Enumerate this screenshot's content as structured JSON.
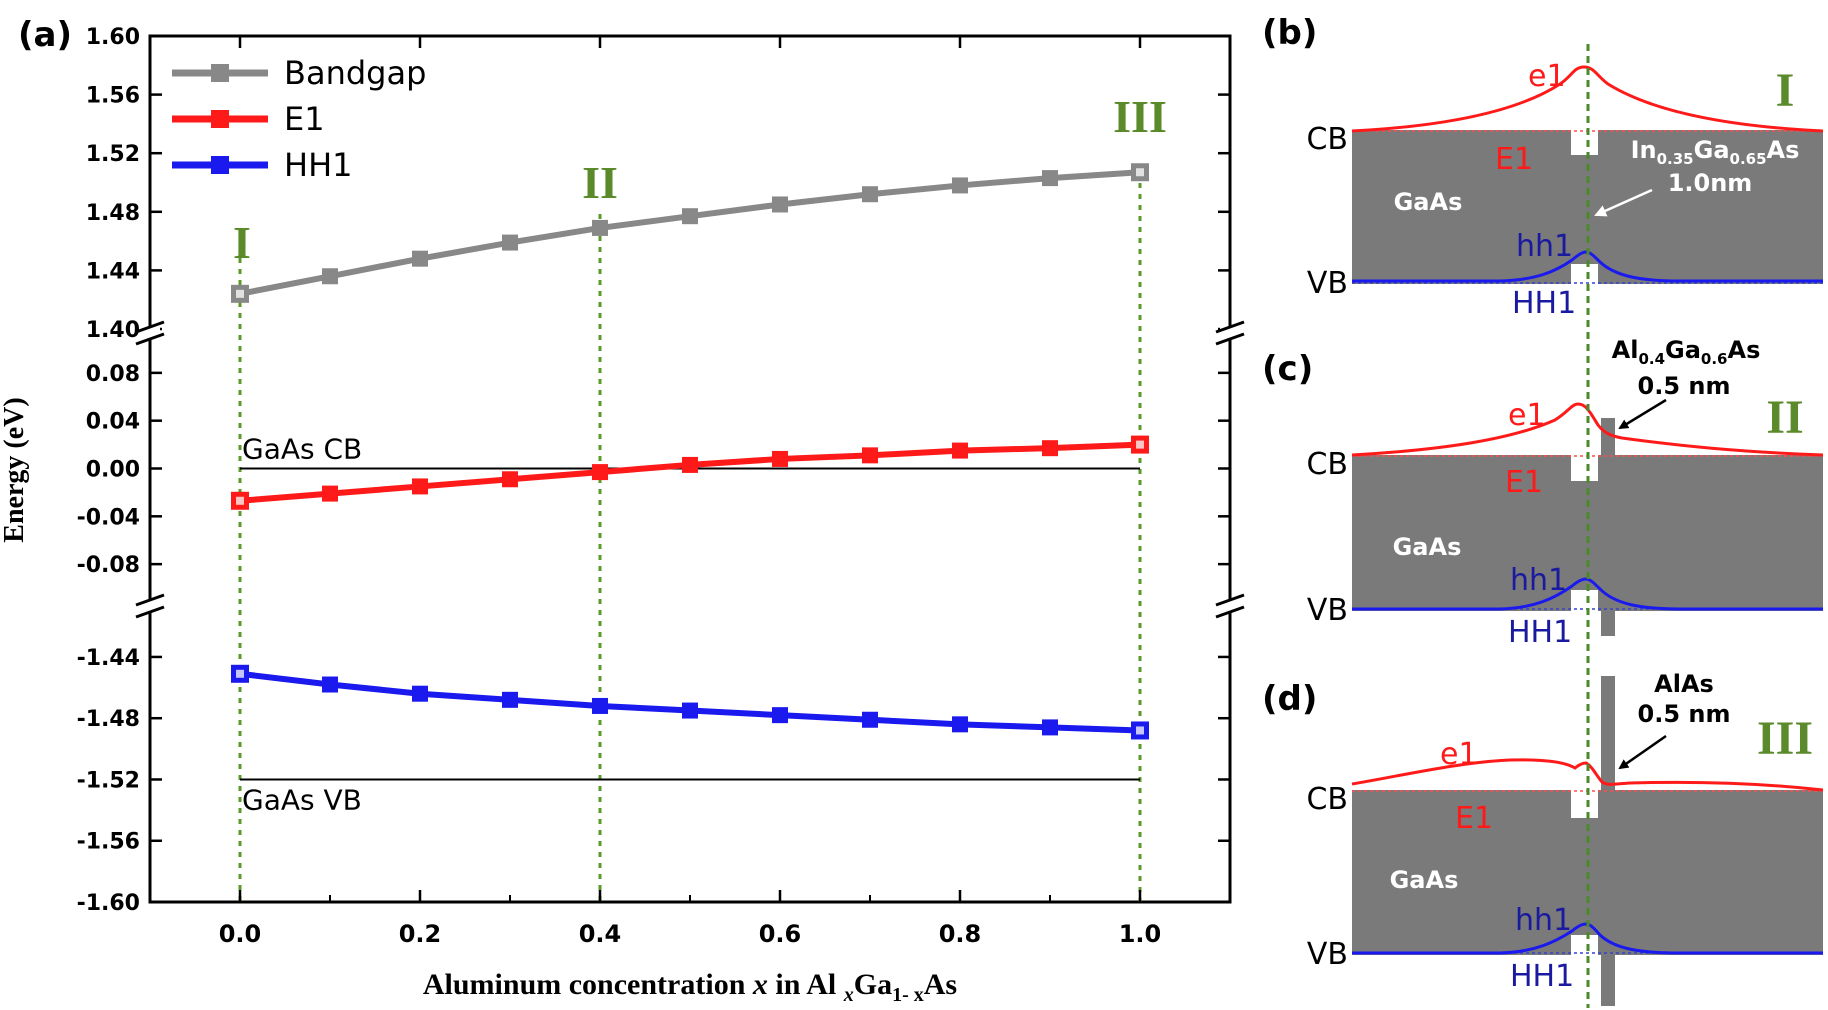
{
  "panels": {
    "a": "(a)",
    "b": "(b)",
    "c": "(c)",
    "d": "(d)"
  },
  "colors": {
    "bandgap": "#888888",
    "e1": "#ff1a1a",
    "hh1": "#1a1aee",
    "guide": "#5a9a2a",
    "roman": "#5a8a2a",
    "well": "#7a7a7a",
    "blue_text": "#1a1aa0"
  },
  "chart_data": {
    "type": "line",
    "title": "",
    "xlabel": "Aluminum concentration x in Al xGa1- xAs",
    "xlabel_parts": {
      "a": "Aluminum concentration ",
      "x": "x",
      "b": " in Al ",
      "sub1": "x",
      "c": "Ga",
      "sub2": "1- x",
      "d": "As"
    },
    "ylabel": "Energy (eV)",
    "xlim": [
      -0.1,
      1.1
    ],
    "x_ticks": [
      0.0,
      0.2,
      0.4,
      0.6,
      0.8,
      1.0
    ],
    "x_tick_labels": [
      "0.0",
      "0.2",
      "0.4",
      "0.6",
      "0.8",
      "1.0"
    ],
    "x": [
      0.0,
      0.1,
      0.2,
      0.3,
      0.4,
      0.5,
      0.6,
      0.7,
      0.8,
      0.9,
      1.0
    ],
    "y_segments": [
      {
        "name": "upper",
        "ylim": [
          1.4,
          1.6
        ],
        "ticks": [
          1.4,
          1.44,
          1.48,
          1.52,
          1.56,
          1.6
        ],
        "tick_labels": [
          "1.40",
          "1.44",
          "1.48",
          "1.52",
          "1.56",
          "1.60"
        ]
      },
      {
        "name": "middle",
        "ylim": [
          -0.11,
          0.11
        ],
        "ticks": [
          -0.08,
          -0.04,
          0.0,
          0.04,
          0.08
        ],
        "tick_labels": [
          "-0.08",
          "-0.04",
          "0.00",
          "0.04",
          "0.08"
        ]
      },
      {
        "name": "lower",
        "ylim": [
          -1.6,
          -1.41
        ],
        "ticks": [
          -1.6,
          -1.56,
          -1.52,
          -1.48,
          -1.44
        ],
        "tick_labels": [
          "-1.60",
          "-1.56",
          "-1.52",
          "-1.48",
          "-1.44"
        ]
      }
    ],
    "series": [
      {
        "name": "Bandgap",
        "segment": 0,
        "color": "#888888",
        "values": [
          1.424,
          1.436,
          1.448,
          1.459,
          1.469,
          1.477,
          1.485,
          1.492,
          1.498,
          1.503,
          1.507
        ]
      },
      {
        "name": "E1",
        "segment": 1,
        "color": "#ff1a1a",
        "values": [
          -0.027,
          -0.021,
          -0.015,
          -0.009,
          -0.003,
          0.003,
          0.008,
          0.011,
          0.015,
          0.017,
          0.02
        ]
      },
      {
        "name": "HH1",
        "segment": 2,
        "color": "#1a1aee",
        "values": [
          -1.451,
          -1.458,
          -1.464,
          -1.468,
          -1.472,
          -1.475,
          -1.478,
          -1.481,
          -1.484,
          -1.486,
          -1.488
        ]
      }
    ],
    "reference_lines": [
      {
        "label": "GaAs CB",
        "segment": 1,
        "y": 0.0,
        "x_range": [
          0.0,
          1.0
        ]
      },
      {
        "label": "GaAs VB",
        "segment": 2,
        "y": -1.52,
        "x_range": [
          0.0,
          1.0
        ]
      }
    ],
    "guide_lines": [
      {
        "x": 0.0,
        "label": "I"
      },
      {
        "x": 0.4,
        "label": "II"
      },
      {
        "x": 1.0,
        "label": "III"
      }
    ],
    "legend": [
      "Bandgap",
      "E1",
      "HH1"
    ],
    "legend_position": "top-left"
  },
  "diagrams": {
    "b": {
      "roman": "I",
      "cb": "CB",
      "vb": "VB",
      "e1": "e1",
      "E1": "E1",
      "hh1": "hh1",
      "HH1": "HH1",
      "material": "GaAs",
      "layer_main": "In",
      "layer_sub1": "0.35",
      "layer_mid": "Ga",
      "layer_sub2": "0.65",
      "layer_end": "As",
      "thickness": "1.0nm"
    },
    "c": {
      "roman": "II",
      "cb": "CB",
      "vb": "VB",
      "e1": "e1",
      "E1": "E1",
      "hh1": "hh1",
      "HH1": "HH1",
      "material": "GaAs",
      "layer_main": "Al",
      "layer_sub1": "0.4",
      "layer_mid": "Ga",
      "layer_sub2": "0.6",
      "layer_end": "As",
      "thickness": "0.5 nm"
    },
    "d": {
      "roman": "III",
      "cb": "CB",
      "vb": "VB",
      "e1": "e1",
      "E1": "E1",
      "hh1": "hh1",
      "HH1": "HH1",
      "material": "GaAs",
      "layer_name": "AlAs",
      "thickness": "0.5 nm"
    }
  }
}
